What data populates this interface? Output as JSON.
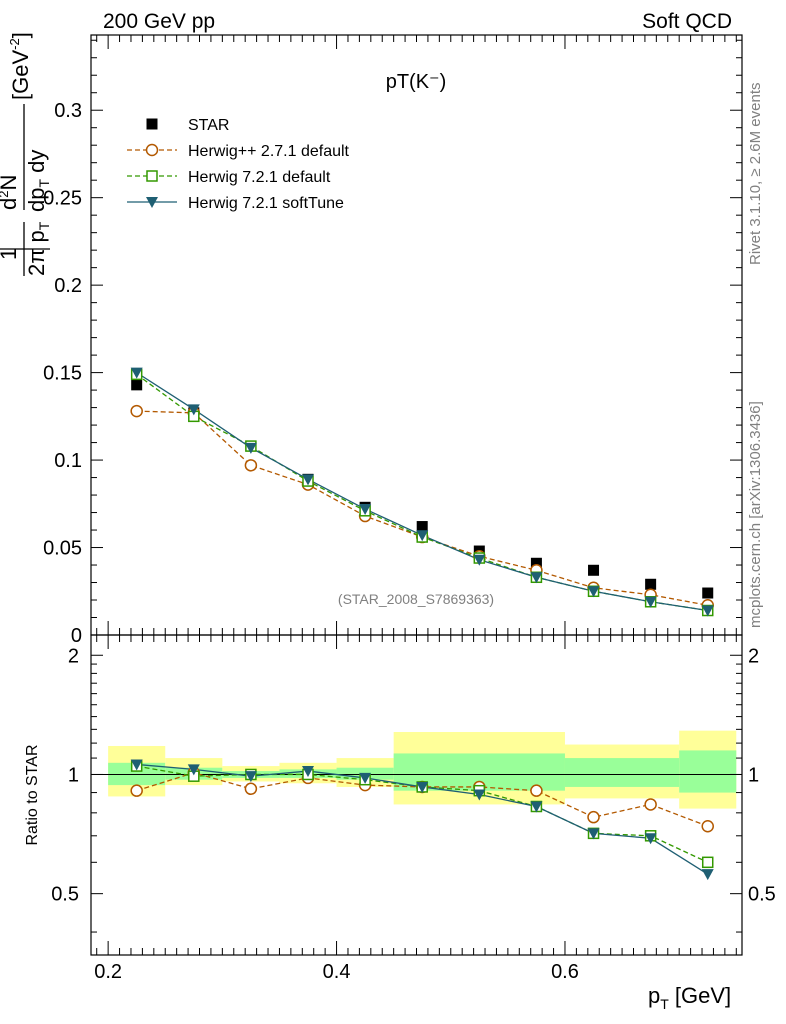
{
  "header": {
    "left": "200 GeV pp",
    "right": "Soft QCD"
  },
  "side_text": {
    "top": "Rivet 3.1.10, ≥ 2.6M events",
    "bottom": "mcplots.cern.ch [arXiv:1306.3436]"
  },
  "chart_data": [
    {
      "type": "scatter",
      "title": "pT(K⁻)",
      "watermark": "(STAR_2008_S7869363)",
      "xlabel": "p_T [GeV]",
      "ylabel": "1/(2π p_T) d²N/(dp_T dy) [GeV⁻²]",
      "xlim": [
        0.185,
        0.755
      ],
      "ylim": [
        0,
        0.343
      ],
      "yticks": [
        0,
        0.05,
        0.1,
        0.15,
        0.2,
        0.25,
        0.3
      ],
      "ytick_labels": [
        "0",
        "0.05",
        "0.1",
        "0.15",
        "0.2",
        "0.25",
        "0.3"
      ],
      "x": [
        0.225,
        0.275,
        0.325,
        0.375,
        0.425,
        0.475,
        0.525,
        0.575,
        0.625,
        0.675,
        0.725
      ],
      "series": [
        {
          "name": "STAR",
          "color": "#000000",
          "marker": "square-filled",
          "values": [
            0.143,
            0.127,
            0.108,
            0.089,
            0.073,
            0.062,
            0.048,
            0.041,
            0.037,
            0.029,
            0.024
          ]
        },
        {
          "name": "Herwig++ 2.7.1 default",
          "color": "#b35900",
          "marker": "circle-open",
          "line": "dashed",
          "values": [
            0.128,
            0.127,
            0.097,
            0.086,
            0.068,
            0.056,
            0.045,
            0.037,
            0.027,
            0.023,
            0.017
          ]
        },
        {
          "name": "Herwig 7.2.1 default",
          "color": "#339900",
          "marker": "square-open",
          "line": "dashed",
          "values": [
            0.149,
            0.125,
            0.108,
            0.088,
            0.071,
            0.056,
            0.044,
            0.033,
            0.025,
            0.019,
            0.014
          ]
        },
        {
          "name": "Herwig 7.2.1 softTune",
          "color": "#1f5f73",
          "marker": "triangle-down-filled",
          "line": "solid",
          "values": [
            0.15,
            0.129,
            0.107,
            0.089,
            0.072,
            0.057,
            0.043,
            0.033,
            0.025,
            0.019,
            0.014
          ]
        }
      ]
    },
    {
      "type": "scatter",
      "ylabel": "Ratio to STAR",
      "xlabel": "p_T [GeV]",
      "xlim": [
        0.185,
        0.755
      ],
      "ylim": [
        0.35,
        2.25
      ],
      "log_y": true,
      "xticks": [
        0.2,
        0.4,
        0.6
      ],
      "xtick_labels": [
        "0.2",
        "0.4",
        "0.6"
      ],
      "yticks": [
        0.5,
        1,
        2
      ],
      "ytick_labels": [
        "0.5",
        "1",
        "2"
      ],
      "bin_edges": [
        0.2,
        0.25,
        0.3,
        0.35,
        0.4,
        0.45,
        0.5,
        0.55,
        0.6,
        0.65,
        0.7,
        0.75
      ],
      "band_groups": [
        {
          "x": [
            0.2,
            0.25
          ],
          "yellow": [
            0.88,
            1.18
          ],
          "green": [
            0.94,
            1.07
          ]
        },
        {
          "x": [
            0.25,
            0.3
          ],
          "yellow": [
            0.94,
            1.1
          ],
          "green": [
            0.97,
            1.04
          ]
        },
        {
          "x": [
            0.3,
            0.35
          ],
          "yellow": [
            0.96,
            1.05
          ],
          "green": [
            0.98,
            1.02
          ]
        },
        {
          "x": [
            0.35,
            0.4
          ],
          "yellow": [
            0.95,
            1.07
          ],
          "green": [
            0.98,
            1.03
          ]
        },
        {
          "x": [
            0.4,
            0.45
          ],
          "yellow": [
            0.93,
            1.1
          ],
          "green": [
            0.97,
            1.04
          ]
        },
        {
          "x": [
            0.45,
            0.6
          ],
          "yellow": [
            0.84,
            1.28
          ],
          "green": [
            0.91,
            1.13
          ]
        },
        {
          "x": [
            0.6,
            0.7
          ],
          "yellow": [
            0.87,
            1.19
          ],
          "green": [
            0.93,
            1.1
          ]
        },
        {
          "x": [
            0.7,
            0.75
          ],
          "yellow": [
            0.82,
            1.29
          ],
          "green": [
            0.9,
            1.15
          ]
        }
      ],
      "reference_line": 1,
      "series": [
        {
          "name": "Herwig++ 2.7.1 default",
          "color": "#b35900",
          "marker": "circle-open",
          "line": "dashed",
          "values": [
            0.91,
            1.01,
            0.92,
            0.98,
            0.94,
            0.93,
            0.93,
            0.91,
            0.78,
            0.84,
            0.74
          ]
        },
        {
          "name": "Herwig 7.2.1 default",
          "color": "#339900",
          "marker": "square-open",
          "line": "dashed",
          "values": [
            1.05,
            0.99,
            1.0,
            1.0,
            0.97,
            0.93,
            0.91,
            0.83,
            0.71,
            0.7,
            0.6
          ]
        },
        {
          "name": "Herwig 7.2.1 softTune",
          "color": "#1f5f73",
          "marker": "triangle-down-filled",
          "line": "solid",
          "values": [
            1.06,
            1.03,
            0.99,
            1.02,
            0.98,
            0.93,
            0.89,
            0.83,
            0.71,
            0.69,
            0.56
          ]
        }
      ]
    }
  ]
}
